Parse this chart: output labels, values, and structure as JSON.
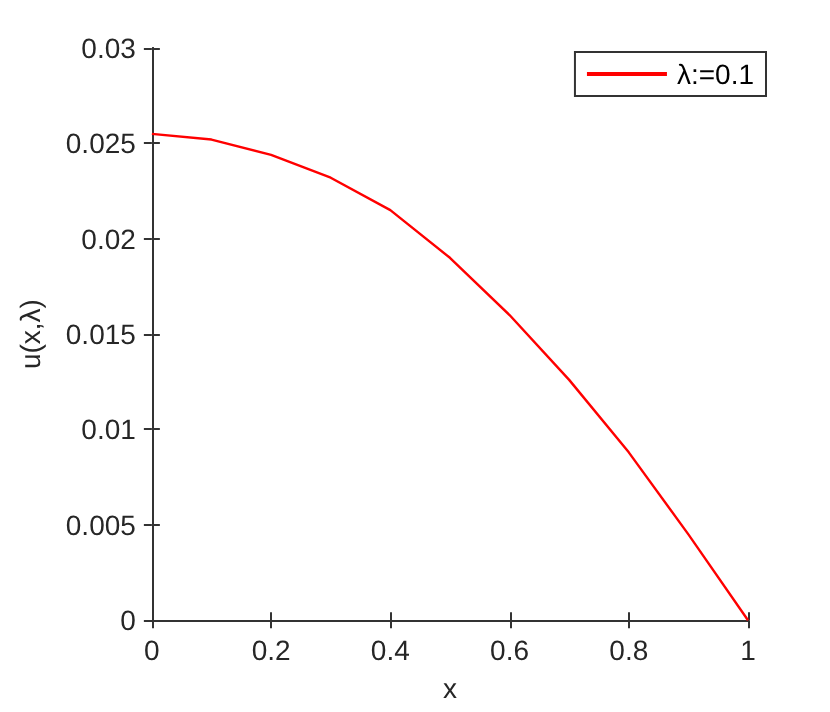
{
  "chart_data": {
    "type": "line",
    "xlabel": "x",
    "ylabel": "u(x,λ)",
    "x": [
      0,
      0.1,
      0.2,
      0.3,
      0.4,
      0.5,
      0.6,
      0.7,
      0.8,
      0.9,
      1
    ],
    "series": [
      {
        "name": "λ:=0.1",
        "color": "#ff0000",
        "values": [
          0.0255,
          0.0252,
          0.0244,
          0.0232,
          0.0215,
          0.019,
          0.016,
          0.0126,
          0.0088,
          0.0045,
          0
        ]
      }
    ],
    "xlim": [
      0,
      1
    ],
    "xticks": [
      0,
      0.2,
      0.4,
      0.6,
      0.8,
      1
    ],
    "ylim": [
      0,
      0.03
    ],
    "yticks": [
      0,
      0.005,
      0.01,
      0.015,
      0.02,
      0.025,
      0.03
    ],
    "grid": false,
    "legend": "top right",
    "marker": "none",
    "line_style": "solid"
  }
}
